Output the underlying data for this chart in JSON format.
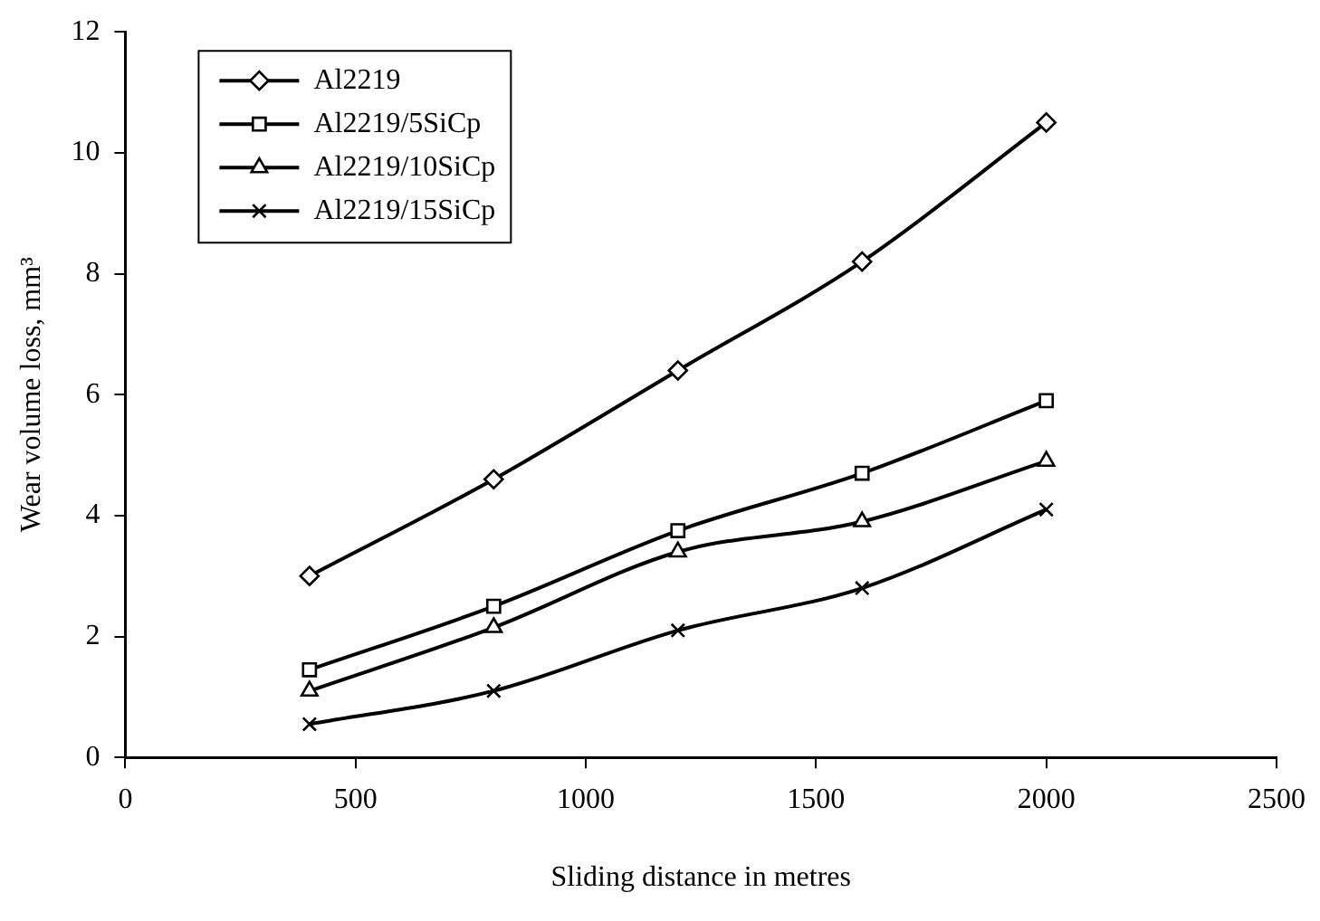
{
  "chart_data": {
    "type": "line",
    "xlabel": "Sliding distance in metres",
    "ylabel": "Wear volume loss, mm³",
    "xlim": [
      0,
      2500
    ],
    "xticks": [
      0,
      500,
      1000,
      1500,
      2000,
      2500
    ],
    "ylim": [
      0,
      12
    ],
    "yticks": [
      0,
      2,
      4,
      6,
      8,
      10,
      12
    ],
    "grid": false,
    "legend": "top left",
    "line_style": "solid",
    "x": [
      400,
      800,
      1200,
      1600,
      2000
    ],
    "series": [
      {
        "name": "Al2219",
        "color": "#000000",
        "marker": "diamond",
        "values": [
          3.0,
          4.6,
          6.4,
          8.2,
          10.5
        ]
      },
      {
        "name": "Al2219/5SiCp",
        "color": "#000000",
        "marker": "square",
        "values": [
          1.45,
          2.5,
          3.75,
          4.7,
          5.9
        ]
      },
      {
        "name": "Al2219/10SiCp",
        "color": "#000000",
        "marker": "triangle",
        "values": [
          1.1,
          2.15,
          3.4,
          3.9,
          4.9
        ]
      },
      {
        "name": "Al2219/15SiCp",
        "color": "#000000",
        "marker": "cross",
        "values": [
          0.55,
          1.1,
          2.1,
          2.8,
          4.1
        ]
      }
    ]
  }
}
